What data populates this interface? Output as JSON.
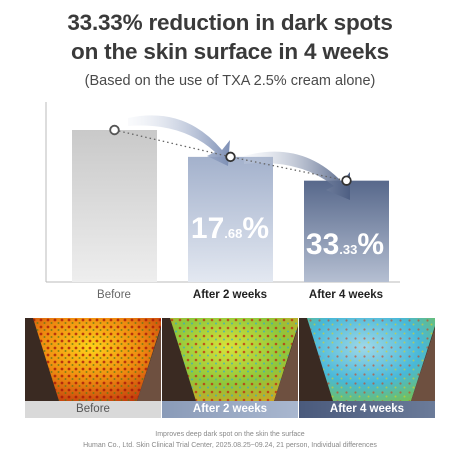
{
  "headline": {
    "line1": "33.33% reduction in dark spots",
    "line2": "on the skin surface in 4 weeks",
    "subtitle": "(Based on the use of TXA 2.5% cream alone)"
  },
  "chart_data": {
    "type": "bar",
    "categories": [
      "Before",
      "After 2 weeks",
      "After 4 weeks"
    ],
    "values": [
      100,
      82.32,
      66.67
    ],
    "reduction_labels": [
      null,
      {
        "main": "17",
        "decimal": ".68",
        "unit": "%"
      },
      {
        "main": "33",
        "decimal": ".33",
        "unit": "%"
      }
    ],
    "ylim": [
      0,
      100
    ],
    "grid": false,
    "trend_line": "dotted",
    "colors": {
      "before_bar": "#c4c4c4",
      "week2_bar": "#a3b1cc",
      "week4_bar": "#57688b",
      "arrow": "#8294b8"
    }
  },
  "images": {
    "captions": [
      "Before",
      "After 2 weeks",
      "After 4 weeks"
    ]
  },
  "footer": {
    "line1": "Improves deep  dark spot on the skin  the surface",
    "line2": "Human Co., Ltd. Skin Clinical Trial Center, 2025.08.25~09.24, 21 person, Individual differences"
  }
}
